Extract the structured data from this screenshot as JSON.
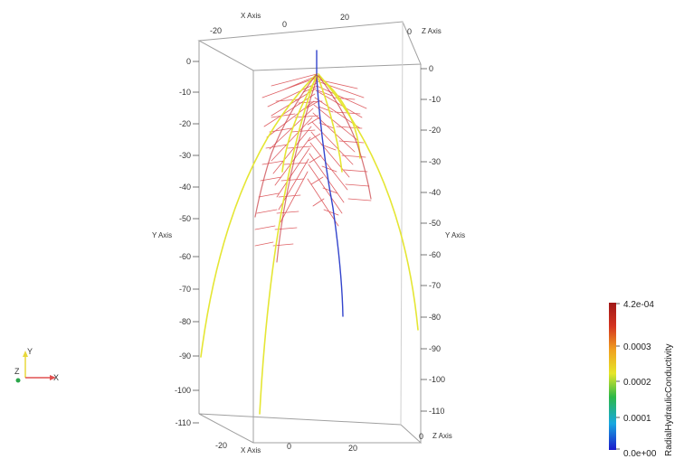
{
  "axes": {
    "x_axis_title": "X Axis",
    "y_axis_title": "Y Axis",
    "z_axis_title": "Z Axis",
    "x_ticks_top": [
      "-20",
      "0",
      "20"
    ],
    "x_ticks_bottom": [
      "-20",
      "0",
      "20"
    ],
    "z_ticks_top": [
      "0"
    ],
    "z_ticks_bottom": [
      "0"
    ],
    "y_ticks_left": [
      "0",
      "-10",
      "-20",
      "-30",
      "-40",
      "-50",
      "-60",
      "-70",
      "-80",
      "-90",
      "-100",
      "-110"
    ],
    "y_ticks_right": [
      "0",
      "-10",
      "-20",
      "-30",
      "-40",
      "-50",
      "-60",
      "-70",
      "-80",
      "-90",
      "-100",
      "-110"
    ]
  },
  "legend": {
    "title": "RadialHydraulicConductivity",
    "max_label": "4.2e-04",
    "labels": [
      "0.0003",
      "0.0002",
      "0.0001"
    ],
    "min_label": "0.0e+00",
    "colors": [
      "#3a24b7",
      "#1cc8e8",
      "#2fb43a",
      "#f0e428",
      "#f08c1c",
      "#d02a1c",
      "#a11818"
    ]
  },
  "orientation": {
    "x_label": "X",
    "y_label": "Y",
    "z_label": "Z"
  },
  "colors": {
    "root_primary": "#e5e634",
    "root_tap": "#3344cc",
    "root_lateral": "#d9454a",
    "box": "#9a9a9a"
  }
}
